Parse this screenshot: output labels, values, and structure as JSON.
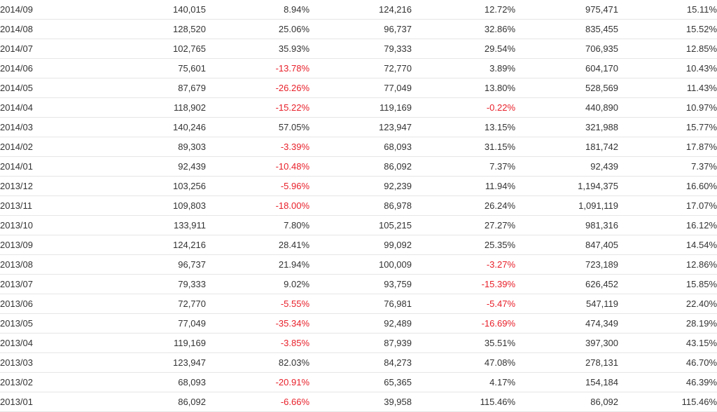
{
  "table": {
    "rows": [
      {
        "month": "2014/09",
        "c1": "140,015",
        "c2": "8.94%",
        "c3": "124,216",
        "c4": "12.72%",
        "c5": "975,471",
        "c6": "15.11%"
      },
      {
        "month": "2014/08",
        "c1": "128,520",
        "c2": "25.06%",
        "c3": "96,737",
        "c4": "32.86%",
        "c5": "835,455",
        "c6": "15.52%"
      },
      {
        "month": "2014/07",
        "c1": "102,765",
        "c2": "35.93%",
        "c3": "79,333",
        "c4": "29.54%",
        "c5": "706,935",
        "c6": "12.85%"
      },
      {
        "month": "2014/06",
        "c1": "75,601",
        "c2": "-13.78%",
        "c3": "72,770",
        "c4": "3.89%",
        "c5": "604,170",
        "c6": "10.43%"
      },
      {
        "month": "2014/05",
        "c1": "87,679",
        "c2": "-26.26%",
        "c3": "77,049",
        "c4": "13.80%",
        "c5": "528,569",
        "c6": "11.43%"
      },
      {
        "month": "2014/04",
        "c1": "118,902",
        "c2": "-15.22%",
        "c3": "119,169",
        "c4": "-0.22%",
        "c5": "440,890",
        "c6": "10.97%"
      },
      {
        "month": "2014/03",
        "c1": "140,246",
        "c2": "57.05%",
        "c3": "123,947",
        "c4": "13.15%",
        "c5": "321,988",
        "c6": "15.77%"
      },
      {
        "month": "2014/02",
        "c1": "89,303",
        "c2": "-3.39%",
        "c3": "68,093",
        "c4": "31.15%",
        "c5": "181,742",
        "c6": "17.87%"
      },
      {
        "month": "2014/01",
        "c1": "92,439",
        "c2": "-10.48%",
        "c3": "86,092",
        "c4": "7.37%",
        "c5": "92,439",
        "c6": "7.37%"
      },
      {
        "month": "2013/12",
        "c1": "103,256",
        "c2": "-5.96%",
        "c3": "92,239",
        "c4": "11.94%",
        "c5": "1,194,375",
        "c6": "16.60%"
      },
      {
        "month": "2013/11",
        "c1": "109,803",
        "c2": "-18.00%",
        "c3": "86,978",
        "c4": "26.24%",
        "c5": "1,091,119",
        "c6": "17.07%"
      },
      {
        "month": "2013/10",
        "c1": "133,911",
        "c2": "7.80%",
        "c3": "105,215",
        "c4": "27.27%",
        "c5": "981,316",
        "c6": "16.12%"
      },
      {
        "month": "2013/09",
        "c1": "124,216",
        "c2": "28.41%",
        "c3": "99,092",
        "c4": "25.35%",
        "c5": "847,405",
        "c6": "14.54%"
      },
      {
        "month": "2013/08",
        "c1": "96,737",
        "c2": "21.94%",
        "c3": "100,009",
        "c4": "-3.27%",
        "c5": "723,189",
        "c6": "12.86%"
      },
      {
        "month": "2013/07",
        "c1": "79,333",
        "c2": "9.02%",
        "c3": "93,759",
        "c4": "-15.39%",
        "c5": "626,452",
        "c6": "15.85%"
      },
      {
        "month": "2013/06",
        "c1": "72,770",
        "c2": "-5.55%",
        "c3": "76,981",
        "c4": "-5.47%",
        "c5": "547,119",
        "c6": "22.40%"
      },
      {
        "month": "2013/05",
        "c1": "77,049",
        "c2": "-35.34%",
        "c3": "92,489",
        "c4": "-16.69%",
        "c5": "474,349",
        "c6": "28.19%"
      },
      {
        "month": "2013/04",
        "c1": "119,169",
        "c2": "-3.85%",
        "c3": "87,939",
        "c4": "35.51%",
        "c5": "397,300",
        "c6": "43.15%"
      },
      {
        "month": "2013/03",
        "c1": "123,947",
        "c2": "82.03%",
        "c3": "84,273",
        "c4": "47.08%",
        "c5": "278,131",
        "c6": "46.70%"
      },
      {
        "month": "2013/02",
        "c1": "68,093",
        "c2": "-20.91%",
        "c3": "65,365",
        "c4": "4.17%",
        "c5": "154,184",
        "c6": "46.39%"
      },
      {
        "month": "2013/01",
        "c1": "86,092",
        "c2": "-6.66%",
        "c3": "39,958",
        "c4": "115.46%",
        "c5": "86,092",
        "c6": "115.46%"
      }
    ]
  },
  "colors": {
    "negative": "#e8202a",
    "text": "#333333",
    "row_border": "#e6e6e6"
  }
}
